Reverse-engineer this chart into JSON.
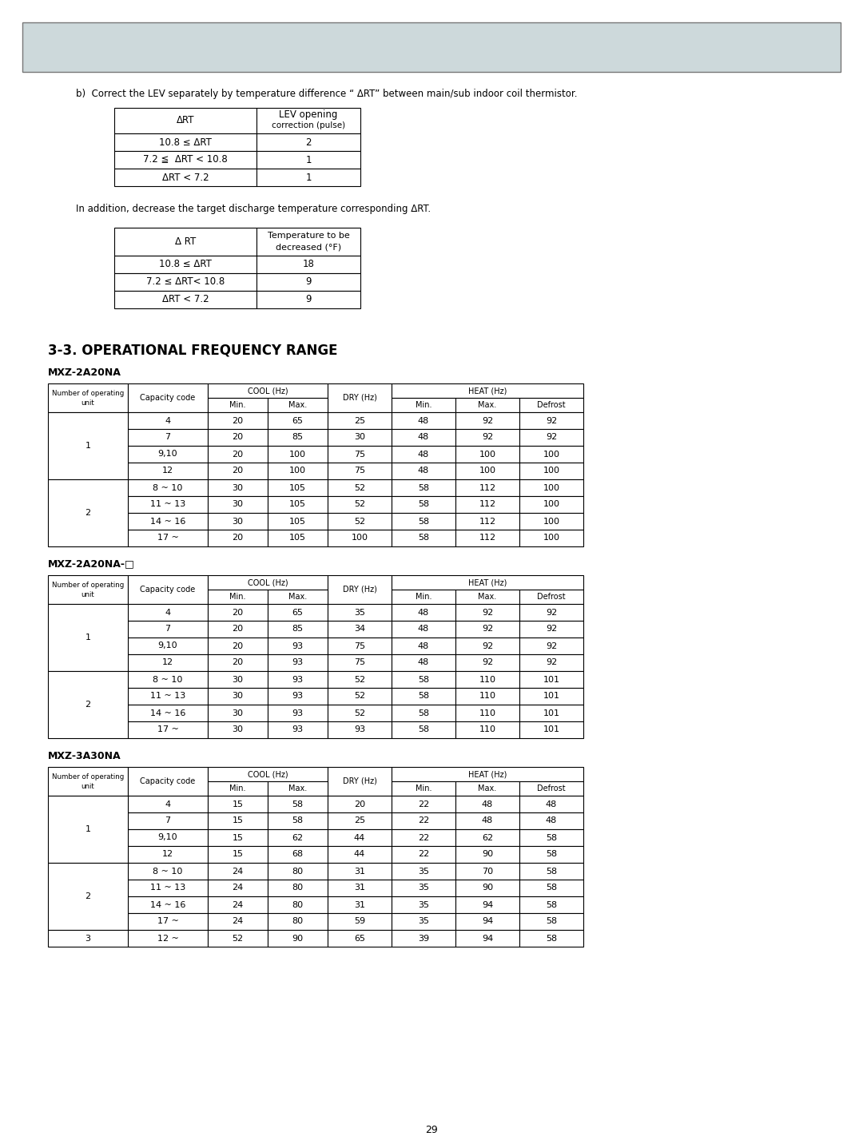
{
  "page_number": "29",
  "gray_box_color": "#cdd9db",
  "gray_box_border": "#888888",
  "section_b_text": "b)  Correct the LEV separately by temperature difference “ ΔRT” between main/sub indoor coil thermistor.",
  "table1_rows": [
    [
      "10.8 ≤ ΔRT",
      "2"
    ],
    [
      "7.2 ≦  ΔRT < 10.8",
      "1"
    ],
    [
      "ΔRT < 7.2",
      "1"
    ]
  ],
  "addition_text": "In addition, decrease the target discharge temperature corresponding ΔRT.",
  "table2_rows": [
    [
      "10.8 ≤ ΔRT",
      "18"
    ],
    [
      "7.2 ≤ ΔRT< 10.8",
      "9"
    ],
    [
      "ΔRT < 7.2",
      "9"
    ]
  ],
  "section_title": "3-3. OPERATIONAL FREQUENCY RANGE",
  "table3_title": "MXZ-2A20NA",
  "table3_rows": [
    [
      "1",
      "4",
      "20",
      "65",
      "25",
      "48",
      "92",
      "92"
    ],
    [
      "1",
      "7",
      "20",
      "85",
      "30",
      "48",
      "92",
      "92"
    ],
    [
      "1",
      "9,10",
      "20",
      "100",
      "75",
      "48",
      "100",
      "100"
    ],
    [
      "1",
      "12",
      "20",
      "100",
      "75",
      "48",
      "100",
      "100"
    ],
    [
      "2",
      "8 ~ 10",
      "30",
      "105",
      "52",
      "58",
      "112",
      "100"
    ],
    [
      "2",
      "11 ~ 13",
      "30",
      "105",
      "52",
      "58",
      "112",
      "100"
    ],
    [
      "2",
      "14 ~ 16",
      "30",
      "105",
      "52",
      "58",
      "112",
      "100"
    ],
    [
      "2",
      "17 ~",
      "20",
      "105",
      "100",
      "58",
      "112",
      "100"
    ]
  ],
  "table4_title": "MXZ-2A20NA-□",
  "table4_rows": [
    [
      "1",
      "4",
      "20",
      "65",
      "35",
      "48",
      "92",
      "92"
    ],
    [
      "1",
      "7",
      "20",
      "85",
      "34",
      "48",
      "92",
      "92"
    ],
    [
      "1",
      "9,10",
      "20",
      "93",
      "75",
      "48",
      "92",
      "92"
    ],
    [
      "1",
      "12",
      "20",
      "93",
      "75",
      "48",
      "92",
      "92"
    ],
    [
      "2",
      "8 ~ 10",
      "30",
      "93",
      "52",
      "58",
      "110",
      "101"
    ],
    [
      "2",
      "11 ~ 13",
      "30",
      "93",
      "52",
      "58",
      "110",
      "101"
    ],
    [
      "2",
      "14 ~ 16",
      "30",
      "93",
      "52",
      "58",
      "110",
      "101"
    ],
    [
      "2",
      "17 ~",
      "30",
      "93",
      "93",
      "58",
      "110",
      "101"
    ]
  ],
  "table5_title": "MXZ-3A30NA",
  "table5_rows": [
    [
      "1",
      "4",
      "15",
      "58",
      "20",
      "22",
      "48",
      "48"
    ],
    [
      "1",
      "7",
      "15",
      "58",
      "25",
      "22",
      "48",
      "48"
    ],
    [
      "1",
      "9,10",
      "15",
      "62",
      "44",
      "22",
      "62",
      "58"
    ],
    [
      "1",
      "12",
      "15",
      "68",
      "44",
      "22",
      "90",
      "58"
    ],
    [
      "2",
      "8 ~ 10",
      "24",
      "80",
      "31",
      "35",
      "70",
      "58"
    ],
    [
      "2",
      "11 ~ 13",
      "24",
      "80",
      "31",
      "35",
      "90",
      "58"
    ],
    [
      "2",
      "14 ~ 16",
      "24",
      "80",
      "31",
      "35",
      "94",
      "58"
    ],
    [
      "2",
      "17 ~",
      "24",
      "80",
      "59",
      "35",
      "94",
      "58"
    ],
    [
      "3",
      "12 ~",
      "52",
      "90",
      "65",
      "39",
      "94",
      "58"
    ]
  ],
  "bg_color": "#ffffff",
  "text_color": "#000000"
}
